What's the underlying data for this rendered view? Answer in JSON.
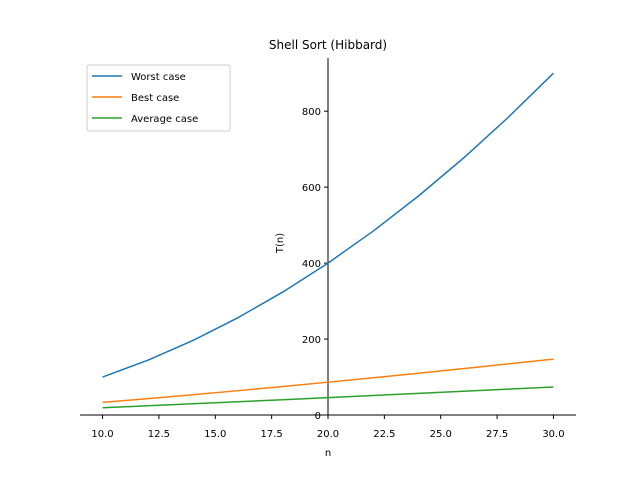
{
  "chart_data": {
    "type": "line",
    "title": "Shell Sort (Hibbard)",
    "xlabel": "n",
    "ylabel": "T(n)",
    "xlim": [
      9.0,
      31.0
    ],
    "ylim": [
      0,
      940
    ],
    "xticks": [
      10.0,
      12.5,
      15.0,
      17.5,
      20.0,
      22.5,
      25.0,
      27.5,
      30.0
    ],
    "xtick_labels": [
      "10.0",
      "12.5",
      "15.0",
      "17.5",
      "20.0",
      "22.5",
      "25.0",
      "27.5",
      "30.0"
    ],
    "yticks": [
      0,
      200,
      400,
      600,
      800
    ],
    "ytick_labels": [
      "0",
      "200",
      "400",
      "600",
      "800"
    ],
    "grid": false,
    "legend_position": "top-left",
    "x": [
      10,
      12,
      14,
      16,
      18,
      20,
      22,
      24,
      26,
      28,
      30
    ],
    "series": [
      {
        "name": "Worst case",
        "color": "#1f77b4",
        "values": [
          100,
          144,
          196,
          256,
          324,
          400,
          484,
          576,
          676,
          784,
          900
        ]
      },
      {
        "name": "Best case",
        "color": "#ff7f0e",
        "values": [
          33.2,
          43.0,
          53.3,
          64.0,
          75.1,
          86.4,
          98.1,
          110.0,
          122.2,
          134.6,
          147.2
        ]
      },
      {
        "name": "Average case",
        "color": "#2ca02c",
        "values": [
          19.0,
          24.2,
          29.5,
          34.9,
          40.3,
          45.8,
          51.3,
          56.8,
          62.4,
          68.0,
          73.6
        ]
      }
    ]
  }
}
